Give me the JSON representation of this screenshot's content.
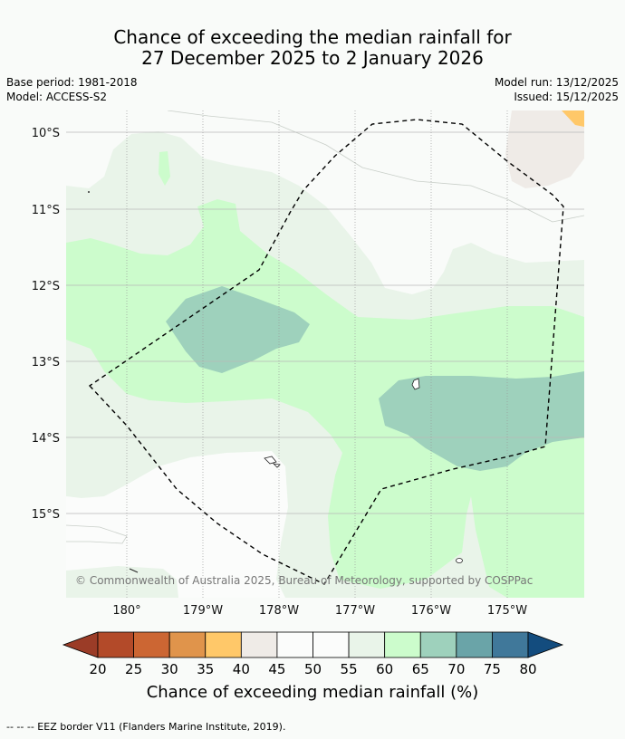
{
  "title": {
    "line1": "Chance of exceeding the median rainfall for",
    "line2": "27 December 2025 to 2 January 2026"
  },
  "meta_left": {
    "base_period": "Base period: 1981-2018",
    "model": "Model: ACCESS-S2"
  },
  "meta_right": {
    "model_run": "Model run: 13/12/2025",
    "issued": "Issued: 15/12/2025"
  },
  "map": {
    "lat_labels": [
      "10°S",
      "11°S",
      "12°S",
      "13°S",
      "14°S",
      "15°S"
    ],
    "lon_labels": [
      "180°",
      "179°W",
      "178°W",
      "177°W",
      "176°W",
      "175°W"
    ],
    "copyright": "© Commonwealth of Australia 2025, Bureau of Meteorology, supported by COSPPac",
    "colors": {
      "c25": "#b34a29",
      "c60": "#e9f4e9",
      "c65": "#ccfccc",
      "c70": "#9ed1bc",
      "c35": "#ffc869",
      "c45": "#efebe7",
      "bg": "#f9fbf9"
    }
  },
  "legend": {
    "ticks": [
      "20",
      "25",
      "30",
      "35",
      "40",
      "45",
      "50",
      "55",
      "60",
      "65",
      "70",
      "75",
      "80"
    ],
    "colors": [
      "#9b3c27",
      "#b34a29",
      "#cc6633",
      "#e0944b",
      "#ffc869",
      "#efebe7",
      "#fbfcfb",
      "#fbfcfb",
      "#e9f4e9",
      "#ccfccc",
      "#9ed1bc",
      "#6aa4a8",
      "#40789a",
      "#134c7e"
    ],
    "label": "Chance of exceeding median rainfall (%)"
  },
  "footnote": "--  --  -- EEZ border V11 (Flanders Marine Institute, 2019)."
}
